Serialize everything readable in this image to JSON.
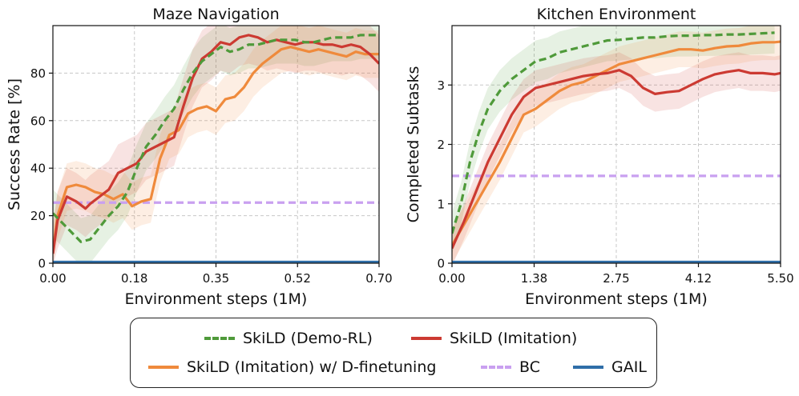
{
  "colors": {
    "demo_rl": "#4f9a3a",
    "imitation": "#cc3a32",
    "imitation_ft": "#ef8a3c",
    "bc": "#c9a0f0",
    "gail": "#2f6ea8"
  },
  "chart_data": [
    {
      "type": "line",
      "title": "Maze Navigation",
      "xlabel": "Environment steps (1M)",
      "ylabel": "Success Rate [%]",
      "xlim": [
        0,
        0.7
      ],
      "ylim": [
        0,
        100
      ],
      "xticks": [
        0.0,
        0.175,
        0.35,
        0.525,
        0.7
      ],
      "xtick_labels": [
        "0.00",
        "0.18",
        "0.35",
        "0.52",
        "0.70"
      ],
      "yticks": [
        0,
        20,
        40,
        60,
        80
      ],
      "ytick_labels": [
        "0",
        "20",
        "40",
        "60",
        "80"
      ],
      "grid": true,
      "series": [
        {
          "name": "SkiLD (Demo-RL)",
          "key": "demo_rl",
          "style": "dashed",
          "x": [
            0.0,
            0.02,
            0.04,
            0.06,
            0.08,
            0.1,
            0.12,
            0.14,
            0.16,
            0.18,
            0.2,
            0.22,
            0.24,
            0.26,
            0.28,
            0.3,
            0.32,
            0.34,
            0.36,
            0.38,
            0.4,
            0.42,
            0.44,
            0.46,
            0.48,
            0.5,
            0.52,
            0.54,
            0.56,
            0.58,
            0.6,
            0.62,
            0.64,
            0.66,
            0.68,
            0.7
          ],
          "y": [
            21,
            17,
            13,
            9,
            10,
            15,
            20,
            24,
            30,
            40,
            49,
            54,
            60,
            65,
            73,
            80,
            85,
            88,
            91,
            89,
            90,
            92,
            92,
            93,
            94,
            94,
            94,
            93,
            93,
            94,
            95,
            95,
            95,
            96,
            96,
            96
          ],
          "band": 10
        },
        {
          "name": "SkiLD (Imitation)",
          "key": "imitation",
          "style": "solid",
          "x": [
            0.0,
            0.01,
            0.03,
            0.05,
            0.07,
            0.08,
            0.1,
            0.12,
            0.14,
            0.16,
            0.18,
            0.2,
            0.22,
            0.24,
            0.26,
            0.28,
            0.3,
            0.32,
            0.34,
            0.36,
            0.38,
            0.4,
            0.42,
            0.44,
            0.46,
            0.48,
            0.5,
            0.52,
            0.54,
            0.56,
            0.58,
            0.6,
            0.62,
            0.64,
            0.66,
            0.68,
            0.7
          ],
          "y": [
            4,
            18,
            28,
            26,
            23,
            25,
            28,
            31,
            38,
            40,
            42,
            47,
            49,
            51,
            53,
            66,
            78,
            86,
            89,
            93,
            92,
            95,
            96,
            95,
            93,
            94,
            93,
            92,
            93,
            93,
            92,
            92,
            91,
            92,
            91,
            88,
            84
          ],
          "band": 12
        },
        {
          "name": "SkiLD (Imitation) w/ D-finetuning",
          "key": "imitation_ft",
          "style": "solid",
          "x": [
            0.0,
            0.01,
            0.03,
            0.05,
            0.07,
            0.09,
            0.11,
            0.13,
            0.15,
            0.17,
            0.19,
            0.21,
            0.23,
            0.25,
            0.27,
            0.29,
            0.31,
            0.33,
            0.35,
            0.37,
            0.39,
            0.41,
            0.43,
            0.45,
            0.47,
            0.49,
            0.51,
            0.53,
            0.55,
            0.57,
            0.59,
            0.61,
            0.63,
            0.65,
            0.67,
            0.7
          ],
          "y": [
            5,
            20,
            32,
            33,
            32,
            30,
            29,
            27,
            29,
            24,
            26,
            27,
            44,
            54,
            56,
            63,
            65,
            66,
            64,
            69,
            70,
            74,
            80,
            84,
            87,
            90,
            91,
            90,
            89,
            90,
            89,
            88,
            87,
            89,
            88,
            88
          ],
          "band": 10
        },
        {
          "name": "BC",
          "key": "bc",
          "style": "dashed",
          "x": [
            0.0,
            0.7
          ],
          "y": [
            25.5,
            25.5
          ],
          "band": 0
        },
        {
          "name": "GAIL",
          "key": "gail",
          "style": "solid",
          "x": [
            0.0,
            0.7
          ],
          "y": [
            0.5,
            0.5
          ],
          "band": 0
        }
      ]
    },
    {
      "type": "line",
      "title": "Kitchen Environment",
      "xlabel": "Environment steps (1M)",
      "ylabel": "Completed Subtasks",
      "xlim": [
        0,
        5.5
      ],
      "ylim": [
        0,
        4
      ],
      "xticks": [
        0.0,
        1.375,
        2.75,
        4.125,
        5.5
      ],
      "xtick_labels": [
        "0.00",
        "1.38",
        "2.75",
        "4.12",
        "5.50"
      ],
      "yticks": [
        0,
        1,
        2,
        3
      ],
      "ytick_labels": [
        "0",
        "1",
        "2",
        "3"
      ],
      "grid": true,
      "series": [
        {
          "name": "SkiLD (Demo-RL)",
          "key": "demo_rl",
          "style": "dashed",
          "x": [
            0.0,
            0.15,
            0.3,
            0.45,
            0.6,
            0.8,
            1.0,
            1.2,
            1.4,
            1.6,
            1.8,
            2.0,
            2.2,
            2.4,
            2.6,
            2.8,
            3.0,
            3.2,
            3.4,
            3.6,
            3.8,
            4.0,
            4.2,
            4.4,
            4.6,
            4.8,
            5.0,
            5.2,
            5.4
          ],
          "y": [
            0.5,
            1.0,
            1.7,
            2.2,
            2.6,
            2.9,
            3.1,
            3.25,
            3.4,
            3.45,
            3.55,
            3.6,
            3.65,
            3.7,
            3.75,
            3.76,
            3.78,
            3.8,
            3.8,
            3.82,
            3.83,
            3.83,
            3.84,
            3.84,
            3.85,
            3.85,
            3.86,
            3.87,
            3.88
          ],
          "band": 0.35
        },
        {
          "name": "SkiLD (Imitation)",
          "key": "imitation",
          "style": "solid",
          "x": [
            0.0,
            0.2,
            0.4,
            0.6,
            0.8,
            1.0,
            1.2,
            1.4,
            1.6,
            1.8,
            2.0,
            2.2,
            2.4,
            2.6,
            2.8,
            2.9,
            3.0,
            3.2,
            3.4,
            3.6,
            3.8,
            4.0,
            4.2,
            4.4,
            4.6,
            4.8,
            5.0,
            5.2,
            5.4,
            5.5
          ],
          "y": [
            0.25,
            0.7,
            1.2,
            1.7,
            2.1,
            2.5,
            2.8,
            2.95,
            3.0,
            3.05,
            3.1,
            3.15,
            3.18,
            3.2,
            3.25,
            3.2,
            3.15,
            2.95,
            2.85,
            2.88,
            2.9,
            3.0,
            3.1,
            3.18,
            3.22,
            3.25,
            3.2,
            3.2,
            3.18,
            3.2
          ],
          "band": 0.3
        },
        {
          "name": "SkiLD (Imitation) w/ D-finetuning",
          "key": "imitation_ft",
          "style": "solid",
          "x": [
            0.0,
            0.2,
            0.4,
            0.6,
            0.8,
            1.0,
            1.2,
            1.4,
            1.6,
            1.8,
            2.0,
            2.2,
            2.4,
            2.6,
            2.8,
            3.0,
            3.2,
            3.4,
            3.6,
            3.8,
            4.0,
            4.2,
            4.4,
            4.6,
            4.8,
            5.0,
            5.2,
            5.4,
            5.5
          ],
          "y": [
            0.3,
            0.65,
            1.0,
            1.35,
            1.7,
            2.1,
            2.5,
            2.6,
            2.75,
            2.9,
            3.0,
            3.05,
            3.15,
            3.25,
            3.35,
            3.4,
            3.45,
            3.5,
            3.55,
            3.6,
            3.6,
            3.58,
            3.62,
            3.65,
            3.66,
            3.7,
            3.72,
            3.72,
            3.73
          ],
          "band": 0.3
        },
        {
          "name": "BC",
          "key": "bc",
          "style": "dashed",
          "x": [
            0.0,
            5.5
          ],
          "y": [
            1.47,
            1.47
          ],
          "band": 0
        },
        {
          "name": "GAIL",
          "key": "gail",
          "style": "solid",
          "x": [
            0.0,
            5.5
          ],
          "y": [
            0.02,
            0.02
          ],
          "band": 0
        }
      ]
    }
  ],
  "legend": {
    "items": [
      {
        "label": "SkiLD (Demo-RL)",
        "key": "demo_rl",
        "style": "dashed"
      },
      {
        "label": "SkiLD (Imitation)",
        "key": "imitation",
        "style": "solid"
      },
      {
        "label": "SkiLD (Imitation) w/ D-finetuning",
        "key": "imitation_ft",
        "style": "solid"
      },
      {
        "label": "BC",
        "key": "bc",
        "style": "dashed"
      },
      {
        "label": "GAIL",
        "key": "gail",
        "style": "solid"
      }
    ]
  }
}
